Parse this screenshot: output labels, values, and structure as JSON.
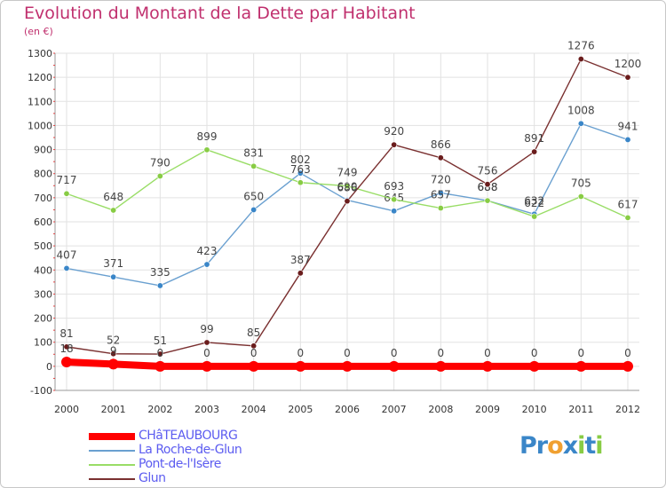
{
  "title": "Evolution du Montant de la Dette par Habitant",
  "subtitle": "(en €)",
  "colors": {
    "title": "#c0306e",
    "legend_text": "#5c5cf0",
    "grid": "#e2e2e2",
    "axis_text": "#333333"
  },
  "chart_data": {
    "type": "line",
    "title": "Evolution du Montant de la Dette par Habitant",
    "ylabel": "(en €)",
    "x": [
      2000,
      2001,
      2002,
      2003,
      2004,
      2005,
      2006,
      2007,
      2008,
      2009,
      2010,
      2011,
      2012
    ],
    "ylim": [
      -100,
      1300
    ],
    "yticks": [
      -100,
      0,
      100,
      200,
      300,
      400,
      500,
      600,
      700,
      800,
      900,
      1000,
      1100,
      1200,
      1300
    ],
    "grid": true,
    "legend_position": "bottom-left",
    "series": [
      {
        "name": "CHâTEAUBOURG",
        "color": "#ff0000",
        "thick": true,
        "values": [
          18,
          9,
          0,
          0,
          0,
          0,
          0,
          0,
          0,
          0,
          0,
          0,
          0
        ],
        "labels": [
          "18",
          "9",
          "0",
          "0",
          "0",
          "0",
          "0",
          "0",
          "0",
          "0",
          "0",
          "0",
          "0"
        ]
      },
      {
        "name": "La Roche-de-Glun",
        "color": "#6aa0d0",
        "marker": "#3a86c8",
        "values": [
          407,
          371,
          335,
          423,
          650,
          802,
          690,
          645,
          720,
          688,
          632,
          1008,
          941
        ],
        "labels": [
          "407",
          "371",
          "335",
          "423",
          "650",
          "802",
          "690",
          "645",
          "720",
          "688",
          "632",
          "1008",
          "941"
        ]
      },
      {
        "name": "Pont-de-l'Isère",
        "color": "#99dd66",
        "marker": "#88cc44",
        "values": [
          717,
          648,
          790,
          899,
          831,
          763,
          749,
          693,
          657,
          688,
          622,
          705,
          617
        ],
        "labels": [
          "717",
          "648",
          "790",
          "899",
          "831",
          "763",
          "749",
          "693",
          "657",
          "688",
          "622",
          "705",
          "617"
        ]
      },
      {
        "name": "Glun",
        "color": "#7a3030",
        "marker": "#6a1c1c",
        "values": [
          81,
          52,
          51,
          99,
          85,
          387,
          686,
          920,
          866,
          756,
          891,
          1276,
          1200
        ],
        "labels": [
          "81",
          "52",
          "51",
          "99",
          "85",
          "387",
          "686",
          "920",
          "866",
          "756",
          "891",
          "1276",
          "1200"
        ]
      }
    ]
  },
  "legend": [
    {
      "label": "CHâTEAUBOURG",
      "color": "#ff0000",
      "thick": true
    },
    {
      "label": "La Roche-de-Glun",
      "color": "#6aa0d0",
      "thick": false
    },
    {
      "label": "Pont-de-l'Isère",
      "color": "#99dd66",
      "thick": false
    },
    {
      "label": "Glun",
      "color": "#7a3030",
      "thick": false
    }
  ],
  "logo": {
    "text": "Proxiti",
    "letters": [
      "P",
      "r",
      "o",
      "x",
      "i",
      "t",
      "i"
    ],
    "letter_colors": [
      "#3a86c8",
      "#3a86c8",
      "#f0a030",
      "#3a86c8",
      "#88cc44",
      "#3a86c8",
      "#88cc44"
    ]
  }
}
